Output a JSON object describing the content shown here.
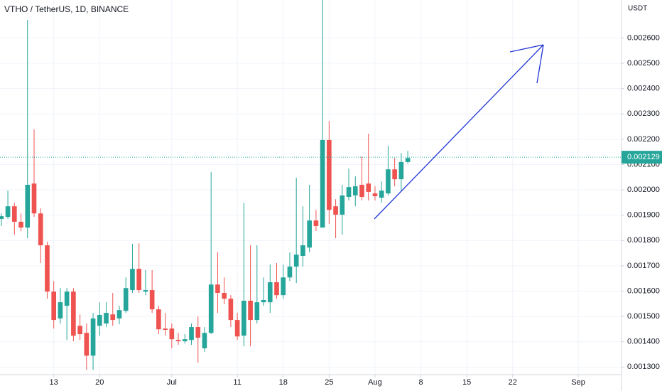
{
  "chart_data": {
    "type": "candlestick",
    "title": "VTHO / TetherUS, 1D, BINANCE",
    "y_unit": "USDT",
    "up_color": "#26a69a",
    "down_color": "#ef5350",
    "grid": true,
    "x": [
      156,
      157,
      158,
      159,
      160,
      161,
      162,
      163,
      164,
      165,
      166,
      167,
      168,
      169,
      170,
      171,
      172,
      173,
      174,
      175,
      176,
      177,
      178,
      179,
      180,
      181,
      182,
      183,
      184,
      185,
      186,
      187,
      188,
      189,
      190,
      191,
      192,
      193,
      194,
      195,
      196,
      197,
      198,
      199,
      200,
      201,
      202,
      203,
      204,
      205,
      206,
      207,
      208,
      209,
      210,
      211,
      212,
      213,
      214,
      215,
      216,
      217,
      218
    ],
    "open": [
      0.001885,
      0.001893,
      0.001935,
      0.001874,
      0.001851,
      0.002025,
      0.001907,
      0.001781,
      0.001598,
      0.001492,
      0.001542,
      0.001598,
      0.001463,
      0.001435,
      0.001345,
      0.001463,
      0.001472,
      0.001508,
      0.001492,
      0.001522,
      0.001604,
      0.001688,
      0.001598,
      0.001604,
      0.001528,
      0.001452,
      0.001452,
      0.001407,
      0.001402,
      0.001407,
      0.001458,
      0.001374,
      0.001435,
      0.001626,
      0.001593,
      0.00157,
      0.001486,
      0.001424,
      0.001562,
      0.001486,
      0.001556,
      0.001556,
      0.001635,
      0.001584,
      0.001654,
      0.001697,
      0.001739,
      0.001772,
      0.001879,
      0.001851,
      0.002197,
      0.001935,
      0.001902,
      0.001972,
      0.001978,
      0.00202,
      0.002025,
      0.001986,
      0.001969,
      0.001986,
      0.002081,
      0.002042,
      0.00211
    ],
    "high": [
      0.001907,
      0.001997,
      0.001949,
      0.001907,
      0.002671,
      0.002239,
      0.001927,
      0.001795,
      0.00164,
      0.001612,
      0.001612,
      0.001612,
      0.001508,
      0.001472,
      0.001514,
      0.001556,
      0.001556,
      0.001593,
      0.001542,
      0.001654,
      0.001787,
      0.001789,
      0.001683,
      0.001683,
      0.001542,
      0.001514,
      0.001472,
      0.001435,
      0.00143,
      0.001472,
      0.0015,
      0.001458,
      0.00207,
      0.001753,
      0.001654,
      0.001584,
      0.001514,
      0.001949,
      0.001781,
      0.001781,
      0.001654,
      0.001705,
      0.001711,
      0.001705,
      0.001753,
      0.002048,
      0.001935,
      0.00202,
      0.001921,
      0.00275,
      0.002272,
      0.001963,
      0.00202,
      0.002084,
      0.002053,
      0.002132,
      0.002222,
      0.002014,
      0.002034,
      0.002174,
      0.002126,
      0.002146,
      0.002154
    ],
    "low": [
      0.001857,
      0.001885,
      0.001823,
      0.001837,
      0.001809,
      0.001893,
      0.001711,
      0.00157,
      0.001452,
      0.001472,
      0.001407,
      0.001402,
      0.001407,
      0.001289,
      0.001289,
      0.001424,
      0.001458,
      0.001463,
      0.001469,
      0.001514,
      0.001593,
      0.001593,
      0.001584,
      0.001514,
      0.00143,
      0.001424,
      0.001374,
      0.001388,
      0.001393,
      0.001388,
      0.001317,
      0.00136,
      0.00143,
      0.001514,
      0.001548,
      0.001458,
      0.001407,
      0.001382,
      0.001382,
      0.001472,
      0.001542,
      0.001514,
      0.00157,
      0.00157,
      0.00164,
      0.001632,
      0.001697,
      0.001753,
      0.001837,
      0.001851,
      0.001865,
      0.001809,
      0.001823,
      0.001958,
      0.001935,
      0.001958,
      0.001958,
      0.001958,
      0.001949,
      0.001978,
      0.002014,
      0.001997,
      0.002104
    ],
    "close": [
      0.001896,
      0.001935,
      0.001874,
      0.001851,
      0.00202,
      0.001907,
      0.001781,
      0.001598,
      0.001486,
      0.001556,
      0.001598,
      0.001424,
      0.00143,
      0.001345,
      0.001492,
      0.001506,
      0.001514,
      0.001486,
      0.001525,
      0.001612,
      0.001688,
      0.001604,
      0.001604,
      0.001528,
      0.001449,
      0.001447,
      0.00141,
      0.001402,
      0.00141,
      0.001458,
      0.001416,
      0.001435,
      0.001626,
      0.001593,
      0.00157,
      0.001486,
      0.001421,
      0.001562,
      0.001486,
      0.001556,
      0.001565,
      0.001635,
      0.001584,
      0.001654,
      0.001697,
      0.001744,
      0.001781,
      0.001879,
      0.001857,
      0.002197,
      0.001921,
      0.001902,
      0.001978,
      0.002011,
      0.002014,
      0.001972,
      0.001992,
      0.001975,
      0.001997,
      0.002081,
      0.002042,
      0.00211,
      0.002126
    ],
    "last_price": 0.002129,
    "xlim": [
      155.8,
      250.6
    ],
    "xticks": [
      {
        "value": 164,
        "label": "13"
      },
      {
        "value": 171,
        "label": "20"
      },
      {
        "value": 182,
        "label": "Jul"
      },
      {
        "value": 192,
        "label": "11"
      },
      {
        "value": 199,
        "label": "18"
      },
      {
        "value": 206,
        "label": "25"
      },
      {
        "value": 213,
        "label": "Aug"
      },
      {
        "value": 220,
        "label": "8"
      },
      {
        "value": 227,
        "label": "15"
      },
      {
        "value": 234,
        "label": "22"
      },
      {
        "value": 244,
        "label": "Sep"
      }
    ],
    "ylim": [
      0.00127,
      0.00275
    ],
    "yticks": [
      {
        "value": 0.0013,
        "label": "0.001300"
      },
      {
        "value": 0.0014,
        "label": "0.001400"
      },
      {
        "value": 0.0015,
        "label": "0.001500"
      },
      {
        "value": 0.0016,
        "label": "0.001600"
      },
      {
        "value": 0.0017,
        "label": "0.001700"
      },
      {
        "value": 0.0018,
        "label": "0.001800"
      },
      {
        "value": 0.0019,
        "label": "0.001900"
      },
      {
        "value": 0.002,
        "label": "0.002000"
      },
      {
        "value": 0.0021,
        "label": "0.002100"
      },
      {
        "value": 0.0022,
        "label": "0.002200"
      },
      {
        "value": 0.0023,
        "label": "0.002300"
      },
      {
        "value": 0.0024,
        "label": "0.002400"
      },
      {
        "value": 0.0025,
        "label": "0.002500"
      },
      {
        "value": 0.0026,
        "label": "0.002600"
      }
    ]
  }
}
